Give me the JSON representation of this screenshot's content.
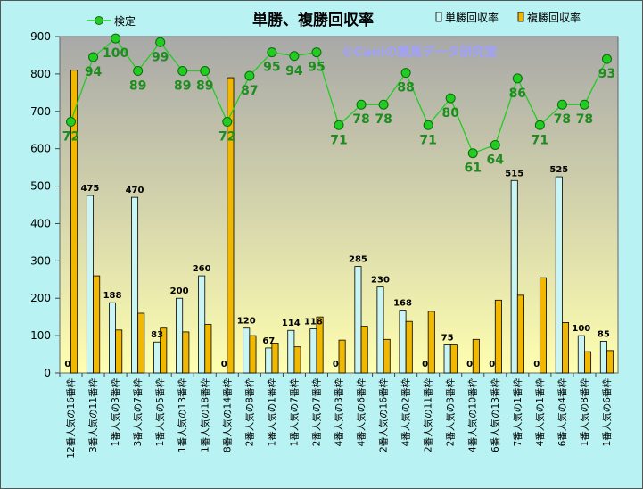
{
  "chart_data": {
    "type": "bar",
    "title": "単勝、複勝回収率",
    "watermark": "©Caniの競馬データ研究室",
    "categories": [
      "12番人気の16番枠",
      "3番人気の11番枠",
      "1番人気の3番枠",
      "3番人気の7番枠",
      "1番人気の5番枠",
      "1番人気の13番枠",
      "1番人気の18番枠",
      "8番人気の14番枠",
      "2番人気の8番枠",
      "1番人気の1番枠",
      "1番人気の7番枠",
      "2番人気の7番枠",
      "4番人気の3番枠",
      "4番人気の6番枠",
      "2番人気の16番枠",
      "4番人気の2番枠",
      "2番人気の11番枠",
      "2番人気の3番枠",
      "4番人気の10番枠",
      "6番人気の13番枠",
      "7番人気の1番枠",
      "4番人気の1番枠",
      "6番人気の4番枠",
      "1番人気の8番枠",
      "1番人気の6番枠"
    ],
    "series": [
      {
        "name": "単勝回収率",
        "type": "bar",
        "color": "#c9f5f5",
        "values": [
          0,
          475,
          188,
          470,
          83,
          200,
          260,
          0,
          120,
          67,
          114,
          118,
          0,
          285,
          230,
          168,
          0,
          75,
          0,
          0,
          515,
          0,
          525,
          100,
          85
        ],
        "labels": [
          "0",
          "475",
          "188",
          "470",
          "83",
          "200",
          "260",
          "0",
          "120",
          "67",
          "114",
          "118",
          "0",
          "285",
          "230",
          "168",
          "0",
          "75",
          "0",
          "0",
          "515",
          "0",
          "525",
          "100",
          "85"
        ]
      },
      {
        "name": "複勝回収率",
        "type": "bar",
        "color": "#f2b800",
        "values": [
          810,
          260,
          115,
          160,
          120,
          110,
          130,
          790,
          100,
          80,
          70,
          150,
          88,
          125,
          90,
          138,
          165,
          75,
          90,
          195,
          208,
          255,
          135,
          57,
          60
        ]
      },
      {
        "name": "検定",
        "type": "line",
        "color": "#22cc22",
        "values": [
          672,
          845,
          895,
          808,
          885,
          808,
          808,
          672,
          795,
          858,
          848,
          858,
          663,
          718,
          718,
          803,
          663,
          735,
          588,
          610,
          788,
          663,
          718,
          718,
          840
        ],
        "labels": [
          "72",
          "94",
          "100",
          "89",
          "99",
          "89",
          "89",
          "72",
          "87",
          "95",
          "94",
          "95",
          "71",
          "78",
          "78",
          "88",
          "71",
          "80",
          "61",
          "64",
          "86",
          "71",
          "78",
          "78",
          "93"
        ]
      }
    ],
    "ylim": [
      0,
      900
    ],
    "yticks": [
      0,
      100,
      200,
      300,
      400,
      500,
      600,
      700,
      800,
      900
    ],
    "ytick_labels": [
      "0",
      "100",
      "200",
      "300",
      "400",
      "500",
      "600",
      "700",
      "800",
      "900"
    ],
    "grid": false,
    "legend": "top",
    "legend_labels": {
      "line": "検定",
      "bar1": "単勝回収率",
      "bar2": "複勝回収率"
    },
    "colors": {
      "frame_bg": "#b9f2f2",
      "plot_top": "#a8a8a8",
      "plot_bottom": "#ffffb0",
      "bar1": "#c9f5f5",
      "bar2": "#f2b800",
      "line": "#22cc22",
      "line_label": "#1e8c1e",
      "watermark": "#a0a0ff"
    }
  }
}
